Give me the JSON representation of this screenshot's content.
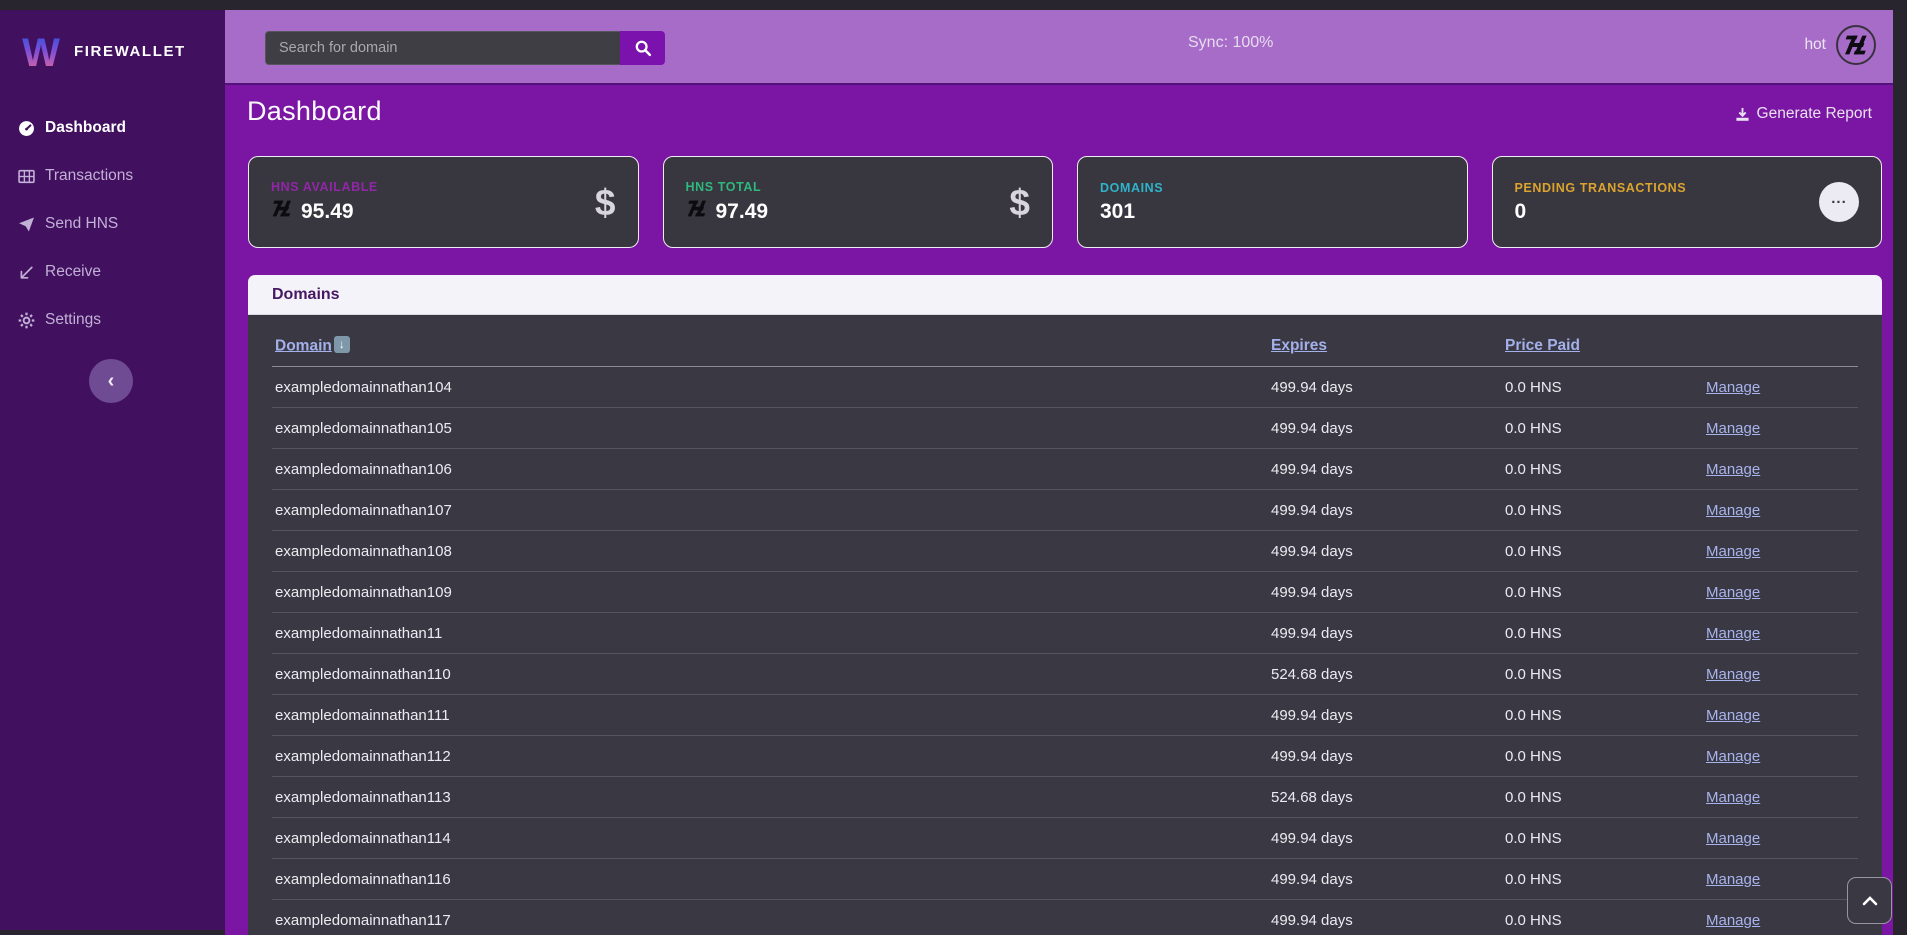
{
  "brand": {
    "name": "FIREWALLET"
  },
  "sidebar": {
    "items": [
      {
        "id": "dashboard",
        "label": "Dashboard",
        "icon": "gauge-icon",
        "active": true
      },
      {
        "id": "transactions",
        "label": "Transactions",
        "icon": "table-icon",
        "active": false
      },
      {
        "id": "send-hns",
        "label": "Send HNS",
        "icon": "send-icon",
        "active": false
      },
      {
        "id": "receive",
        "label": "Receive",
        "icon": "receive-icon",
        "active": false
      },
      {
        "id": "settings",
        "label": "Settings",
        "icon": "gear-icon",
        "active": false
      }
    ],
    "collapse_icon": "chevron-left-icon"
  },
  "topbar": {
    "search_placeholder": "Search for domain",
    "search_icon": "search-icon",
    "sync_status": "Sync: 100%",
    "wallet_label": "hot",
    "wallet_icon": "handshake-logo-icon"
  },
  "page": {
    "title": "Dashboard",
    "generate_report_label": "Generate Report",
    "generate_report_icon": "download-icon"
  },
  "cards": [
    {
      "label": "HNS AVAILABLE",
      "value": "95.49",
      "accent": "#9126a8",
      "value_icon": "hns-logo-icon",
      "right_icon": "dollar-icon"
    },
    {
      "label": "HNS TOTAL",
      "value": "97.49",
      "accent": "#2eb87d",
      "value_icon": "hns-logo-icon",
      "right_icon": "dollar-icon"
    },
    {
      "label": "DOMAINS",
      "value": "301",
      "accent": "#2fb3c9",
      "value_icon": "",
      "right_icon": ""
    },
    {
      "label": "PENDING TRANSACTIONS",
      "value": "0",
      "accent": "#dca42e",
      "value_icon": "",
      "right_icon": "ellipsis-icon"
    }
  ],
  "domains_panel": {
    "title": "Domains",
    "columns": [
      {
        "label": "Domain",
        "sorted_desc": true
      },
      {
        "label": "Expires",
        "sorted_desc": false
      },
      {
        "label": "Price Paid",
        "sorted_desc": false
      }
    ],
    "manage_label": "Manage",
    "rows": [
      {
        "domain": "exampledomainnathan104",
        "expires": "499.94 days",
        "price": "0.0 HNS"
      },
      {
        "domain": "exampledomainnathan105",
        "expires": "499.94 days",
        "price": "0.0 HNS"
      },
      {
        "domain": "exampledomainnathan106",
        "expires": "499.94 days",
        "price": "0.0 HNS"
      },
      {
        "domain": "exampledomainnathan107",
        "expires": "499.94 days",
        "price": "0.0 HNS"
      },
      {
        "domain": "exampledomainnathan108",
        "expires": "499.94 days",
        "price": "0.0 HNS"
      },
      {
        "domain": "exampledomainnathan109",
        "expires": "499.94 days",
        "price": "0.0 HNS"
      },
      {
        "domain": "exampledomainnathan11",
        "expires": "499.94 days",
        "price": "0.0 HNS"
      },
      {
        "domain": "exampledomainnathan110",
        "expires": "524.68 days",
        "price": "0.0 HNS"
      },
      {
        "domain": "exampledomainnathan111",
        "expires": "499.94 days",
        "price": "0.0 HNS"
      },
      {
        "domain": "exampledomainnathan112",
        "expires": "499.94 days",
        "price": "0.0 HNS"
      },
      {
        "domain": "exampledomainnathan113",
        "expires": "524.68 days",
        "price": "0.0 HNS"
      },
      {
        "domain": "exampledomainnathan114",
        "expires": "499.94 days",
        "price": "0.0 HNS"
      },
      {
        "domain": "exampledomainnathan116",
        "expires": "499.94 days",
        "price": "0.0 HNS"
      },
      {
        "domain": "exampledomainnathan117",
        "expires": "499.94 days",
        "price": "0.0 HNS"
      }
    ]
  },
  "colors": {
    "sidebar_bg": "#41105f",
    "topbar_bg": "#a76cc8",
    "main_bg": "#7b16a4",
    "card_bg": "#38363f",
    "link": "#a3b0ea"
  }
}
